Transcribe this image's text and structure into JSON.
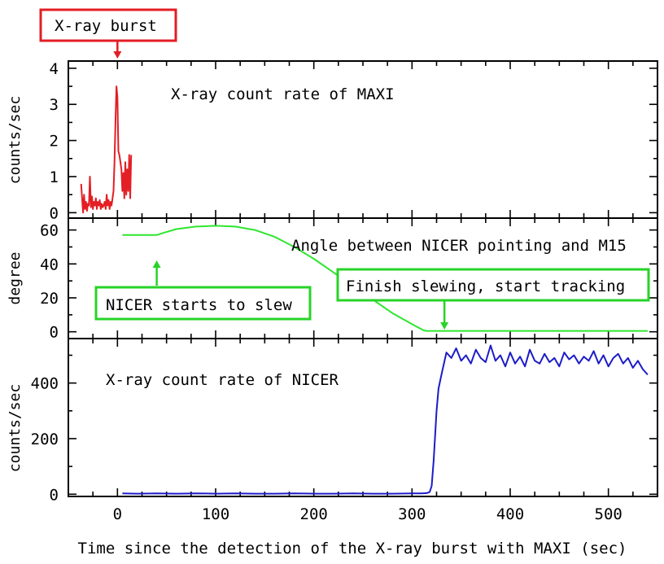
{
  "chart_data": {
    "type": "line",
    "xlabel": "Time since the detection of the X-ray burst with MAXI (sec)",
    "xlim": [
      -50,
      550
    ],
    "xticks": [
      0,
      100,
      200,
      300,
      400,
      500
    ],
    "colors": {
      "maxi": "#e31e24",
      "angle": "#2ee62e",
      "nicer": "#1c1cc8",
      "callout_red": "#e31e24",
      "callout_green": "#27d327"
    },
    "panels": [
      {
        "id": "maxi",
        "ylabel": "counts/sec",
        "ylim": [
          -0.15,
          4.2
        ],
        "yticks": [
          0,
          1,
          2,
          3,
          4
        ],
        "annotation": "X-ray count rate of MAXI",
        "series": [
          {
            "x": [
              -37,
              -36,
              -35,
              -34,
              -33,
              -32,
              -31,
              -30,
              -29,
              -28,
              -27,
              -26,
              -25,
              -24,
              -23,
              -22,
              -21,
              -20,
              -19,
              -18,
              -17,
              -16,
              -15,
              -14,
              -13,
              -12,
              -11,
              -10,
              -9,
              -8,
              -7,
              -6,
              -5,
              -4,
              -3,
              -2,
              -1,
              0,
              1,
              2,
              3,
              4,
              5,
              6,
              7,
              8,
              9,
              10,
              11,
              12,
              13,
              14
            ],
            "y": [
              0.8,
              0.4,
              0.0,
              0.5,
              0.1,
              0.3,
              0.05,
              0.25,
              0.2,
              1.0,
              0.15,
              0.45,
              0.1,
              0.3,
              0.2,
              0.4,
              0.1,
              0.3,
              0.2,
              0.35,
              0.1,
              0.25,
              0.15,
              0.2,
              0.3,
              0.1,
              0.5,
              0.2,
              0.35,
              0.1,
              0.3,
              0.2,
              0.4,
              0.6,
              1.4,
              2.5,
              3.5,
              3.2,
              1.7,
              1.6,
              1.4,
              1.2,
              0.6,
              1.1,
              0.4,
              1.4,
              0.5,
              1.2,
              0.6,
              1.6,
              0.4,
              1.6
            ]
          }
        ]
      },
      {
        "id": "angle",
        "ylabel": "degree",
        "ylim": [
          -4,
          67
        ],
        "yticks": [
          0,
          20,
          40,
          60
        ],
        "annotation": "Angle between NICER pointing and M15",
        "series": [
          {
            "x": [
              5,
              20,
              40,
              45,
              60,
              80,
              100,
              120,
              140,
              160,
              180,
              200,
              220,
              240,
              260,
              280,
              300,
              312,
              315,
              330,
              400,
              450,
              500,
              540
            ],
            "y": [
              57,
              57,
              57,
              58,
              60.5,
              62,
              62.5,
              62,
              60,
              56,
              50,
              43,
              35,
              27,
              19,
              11,
              4.5,
              0.8,
              0.5,
              0.5,
              0.5,
              0.5,
              0.5,
              0.5
            ]
          }
        ],
        "callouts": [
          {
            "text": "NICER starts to slew",
            "arrow_x": 40
          },
          {
            "text": "Finish slewing, start tracking",
            "arrow_x": 333
          }
        ]
      },
      {
        "id": "nicer",
        "ylabel": "counts/sec",
        "ylim": [
          -8,
          560
        ],
        "yticks": [
          0,
          200,
          400
        ],
        "annotation": "X-ray count rate of NICER",
        "series": [
          {
            "x": [
              5,
              20,
              40,
              60,
              80,
              100,
              120,
              140,
              160,
              180,
              200,
              220,
              240,
              260,
              280,
              300,
              310,
              315,
              318,
              320,
              322,
              325,
              327,
              330,
              335,
              340,
              345,
              350,
              355,
              360,
              365,
              370,
              375,
              380,
              385,
              390,
              395,
              400,
              405,
              410,
              415,
              420,
              425,
              430,
              435,
              440,
              445,
              450,
              455,
              460,
              465,
              470,
              475,
              480,
              485,
              490,
              495,
              500,
              505,
              510,
              515,
              520,
              525,
              530,
              535,
              540
            ],
            "y": [
              3,
              2,
              3,
              2,
              3,
              2,
              3,
              2,
              2,
              3,
              2,
              2,
              3,
              2,
              2,
              3,
              3,
              4,
              8,
              30,
              120,
              300,
              380,
              430,
              510,
              490,
              525,
              480,
              500,
              470,
              520,
              490,
              475,
              535,
              480,
              500,
              460,
              510,
              470,
              495,
              460,
              520,
              480,
              470,
              505,
              475,
              490,
              460,
              510,
              485,
              500,
              470,
              495,
              480,
              515,
              470,
              500,
              460,
              490,
              505,
              470,
              490,
              455,
              480,
              450,
              430
            ]
          }
        ]
      }
    ],
    "callout_top": {
      "text": "X-ray burst",
      "arrow_x": 0
    }
  }
}
